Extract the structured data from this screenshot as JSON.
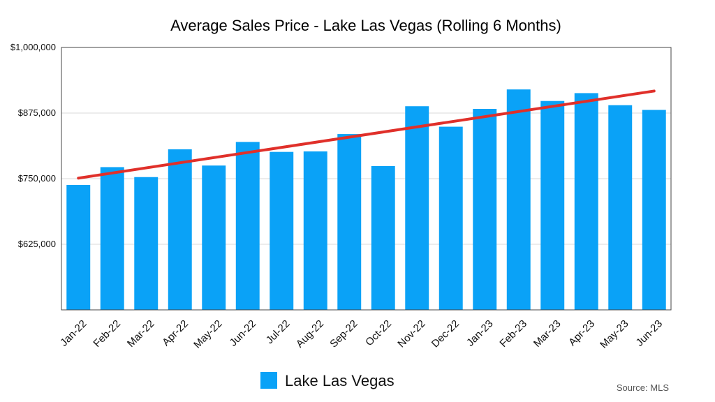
{
  "chart_data": {
    "type": "bar",
    "title": "Average Sales Price - Lake Las Vegas (Rolling 6 Months)",
    "xlabel": "",
    "ylabel": "",
    "ylim": [
      500000,
      1000000
    ],
    "yticks": [
      625000,
      750000,
      875000,
      1000000
    ],
    "ytick_labels": [
      "$625,000",
      "$750,000",
      "$875,000",
      "$1,000,000"
    ],
    "categories": [
      "Jan-22",
      "Feb-22",
      "Mar-22",
      "Apr-22",
      "May-22",
      "Jun-22",
      "Jul-22",
      "Aug-22",
      "Sep-22",
      "Oct-22",
      "Nov-22",
      "Dec-22",
      "Jan-23",
      "Feb-23",
      "Mar-23",
      "Apr-23",
      "May-23",
      "Jun-23"
    ],
    "series": [
      {
        "name": "Lake Las Vegas",
        "color": "#0aa2f7",
        "values": [
          738000,
          772000,
          753000,
          806000,
          775000,
          820000,
          801000,
          802000,
          835000,
          774000,
          888000,
          849000,
          883000,
          920000,
          898000,
          913000,
          890000,
          881000
        ]
      }
    ],
    "trendline": {
      "color": "#e0302a",
      "start": 751000,
      "end": 917000
    },
    "grid": true,
    "legend": "bottom-center",
    "source": "Source: MLS"
  }
}
